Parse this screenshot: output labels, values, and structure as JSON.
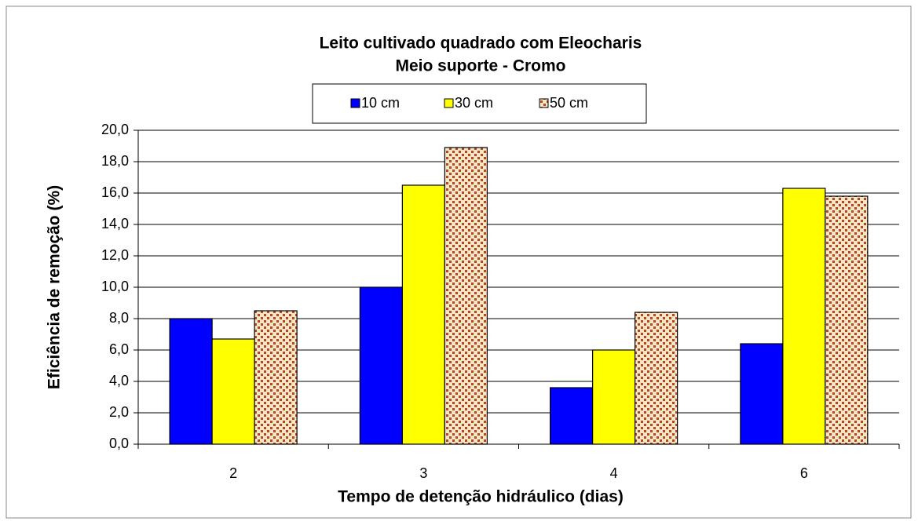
{
  "chart_data": {
    "type": "bar",
    "title": "Leito cultivado quadrado com Eleocharis",
    "subtitle": "Meio suporte - Cromo",
    "x_label": "Tempo de detenção hidráulico (dias)",
    "y_label": "Eficiência de remoção (%)",
    "categories": [
      "2",
      "3",
      "4",
      "6"
    ],
    "series": [
      {
        "name": "10 cm",
        "color": "#0000ff",
        "values": [
          8.0,
          10.0,
          3.6,
          6.4
        ]
      },
      {
        "name": "30 cm",
        "color": "#ffff00",
        "values": [
          6.7,
          16.5,
          6.0,
          16.3
        ]
      },
      {
        "name": "50 cm",
        "color": "#b5451b",
        "pattern": "dots",
        "values": [
          8.5,
          18.9,
          8.4,
          15.8
        ]
      }
    ],
    "ylim": [
      0,
      20
    ],
    "yticks": [
      {
        "value": 0,
        "label": "0,0"
      },
      {
        "value": 2,
        "label": "2,0"
      },
      {
        "value": 4,
        "label": "4,0"
      },
      {
        "value": 6,
        "label": "6,0"
      },
      {
        "value": 8,
        "label": "8,0"
      },
      {
        "value": 10,
        "label": "10,0"
      },
      {
        "value": 12,
        "label": "12,0"
      },
      {
        "value": 14,
        "label": "14,0"
      },
      {
        "value": 16,
        "label": "16,0"
      },
      {
        "value": 18,
        "label": "18,0"
      },
      {
        "value": 20,
        "label": "20,0"
      }
    ],
    "grid": true,
    "legend": "top"
  }
}
